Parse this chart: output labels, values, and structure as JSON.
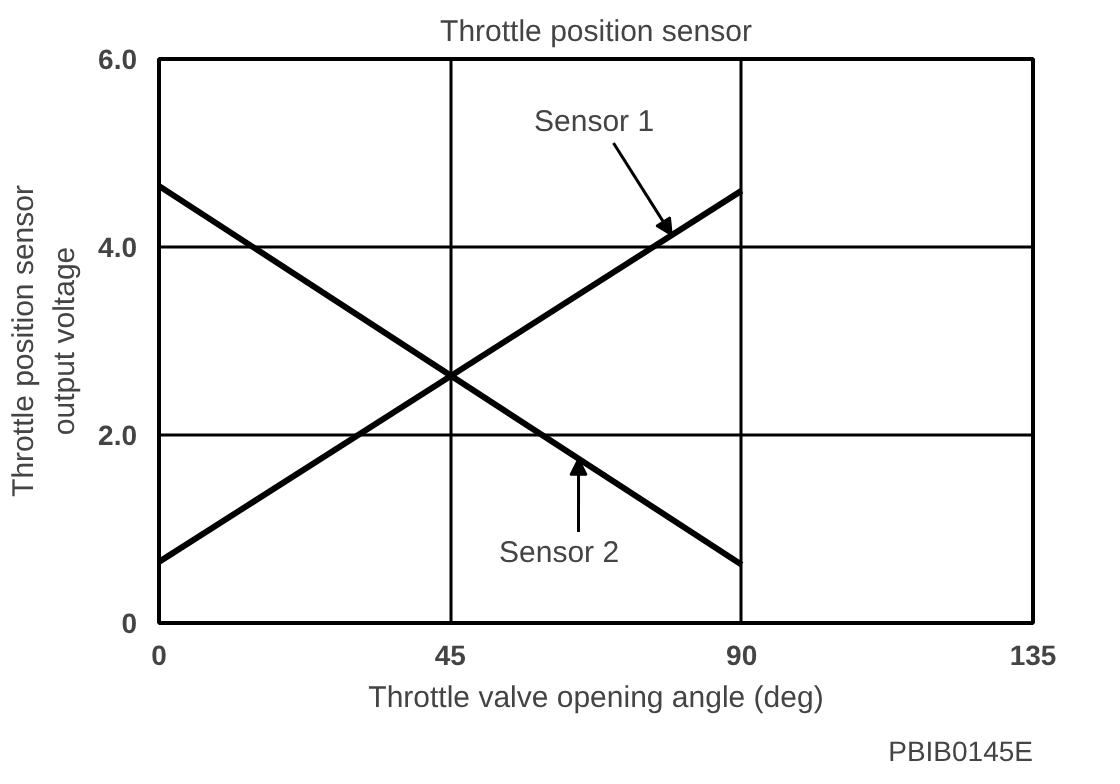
{
  "chart_data": {
    "type": "line",
    "title": "Throttle position sensor",
    "xlabel": "Throttle valve opening angle (deg)",
    "ylabel": "Throttle position sensor output voltage",
    "x": [
      0,
      90
    ],
    "series": [
      {
        "name": "Sensor 1",
        "color": "#000000",
        "values": [
          0.65,
          4.6
        ]
      },
      {
        "name": "Sensor 2",
        "color": "#000000",
        "values": [
          4.65,
          0.62
        ]
      }
    ],
    "xlim": [
      0,
      135
    ],
    "xticks": [
      0,
      45,
      90,
      135
    ],
    "ylim": [
      0,
      6
    ],
    "yticks": [
      0,
      {
        "value": 2,
        "label": "2.0"
      },
      {
        "value": 4,
        "label": "4.0"
      },
      {
        "value": 6,
        "label": "6.0"
      }
    ],
    "grid": true,
    "legend": false,
    "marker": "none",
    "line_style": "solid",
    "annotations": [
      "PBIB0145E"
    ]
  }
}
